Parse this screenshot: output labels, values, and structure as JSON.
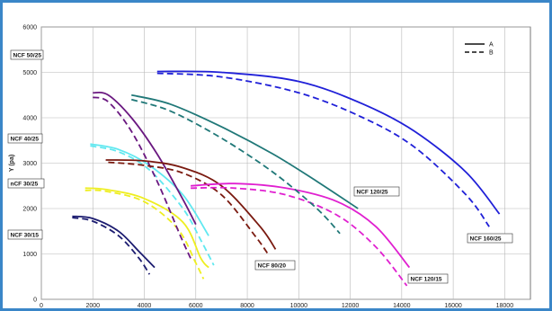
{
  "chart_data": {
    "type": "line",
    "ylabel": "Y (pa)",
    "xlabel": "",
    "xlim": [
      0,
      19000
    ],
    "ylim": [
      0,
      6000
    ],
    "x_ticks": [
      "0",
      "2000",
      "4000",
      "6000",
      "8000",
      "10000",
      "12000",
      "14000",
      "16000",
      "18000"
    ],
    "y_ticks": [
      "0",
      "1000",
      "2000",
      "3000",
      "4000",
      "5000",
      "6000"
    ],
    "grid": true,
    "legend": {
      "position": "top-right",
      "entries": [
        {
          "label": "A",
          "style": "solid"
        },
        {
          "label": "B",
          "style": "dashed"
        }
      ]
    },
    "series": [
      {
        "name": "NCF 30/15",
        "color": "#1c1c70",
        "A": [
          [
            1200,
            1830
          ],
          [
            2000,
            1780
          ],
          [
            3000,
            1500
          ],
          [
            3800,
            1050
          ],
          [
            4400,
            700
          ]
        ],
        "B": [
          [
            1200,
            1800
          ],
          [
            2000,
            1720
          ],
          [
            3000,
            1400
          ],
          [
            3800,
            900
          ],
          [
            4200,
            550
          ]
        ]
      },
      {
        "name": "NCF 30/25",
        "color": "#eeee20",
        "A": [
          [
            1700,
            2450
          ],
          [
            2500,
            2420
          ],
          [
            4000,
            2220
          ],
          [
            5500,
            1700
          ],
          [
            6200,
            900
          ],
          [
            6500,
            700
          ]
        ],
        "B": [
          [
            1700,
            2400
          ],
          [
            2500,
            2380
          ],
          [
            4000,
            2150
          ],
          [
            5300,
            1550
          ],
          [
            6000,
            800
          ],
          [
            6300,
            450
          ]
        ]
      },
      {
        "name": "NCF 40/25",
        "color": "#60e8f0",
        "A": [
          [
            1900,
            3420
          ],
          [
            3000,
            3300
          ],
          [
            4200,
            2950
          ],
          [
            5500,
            2300
          ],
          [
            6500,
            1400
          ]
        ],
        "B": [
          [
            1900,
            3380
          ],
          [
            3000,
            3250
          ],
          [
            4200,
            2850
          ],
          [
            5500,
            2000
          ],
          [
            6200,
            1300
          ],
          [
            6700,
            750
          ]
        ]
      },
      {
        "name": "NCF 50/25",
        "color": "#6a1880",
        "A": [
          [
            2000,
            4550
          ],
          [
            2600,
            4500
          ],
          [
            3500,
            4000
          ],
          [
            4500,
            3200
          ],
          [
            5500,
            2200
          ],
          [
            6000,
            1650
          ]
        ],
        "B": [
          [
            2000,
            4450
          ],
          [
            2600,
            4350
          ],
          [
            3500,
            3700
          ],
          [
            4500,
            2600
          ],
          [
            5400,
            1400
          ],
          [
            5800,
            900
          ]
        ]
      },
      {
        "name": "NCF 80/20",
        "color": "#7a1a10",
        "A": [
          [
            2500,
            3070
          ],
          [
            4000,
            3050
          ],
          [
            5500,
            2900
          ],
          [
            7000,
            2500
          ],
          [
            8500,
            1600
          ],
          [
            9100,
            1100
          ]
        ],
        "B": [
          [
            2600,
            3020
          ],
          [
            4000,
            2950
          ],
          [
            5500,
            2780
          ],
          [
            7000,
            2300
          ],
          [
            8300,
            1400
          ],
          [
            8800,
            1000
          ]
        ]
      },
      {
        "name": "NCF 120/15",
        "color": "#e020d0",
        "A": [
          [
            5800,
            2500
          ],
          [
            7500,
            2550
          ],
          [
            9500,
            2450
          ],
          [
            11500,
            2150
          ],
          [
            13000,
            1600
          ],
          [
            14300,
            700
          ]
        ],
        "B": [
          [
            5800,
            2450
          ],
          [
            7500,
            2450
          ],
          [
            9500,
            2300
          ],
          [
            11500,
            1850
          ],
          [
            13000,
            1150
          ],
          [
            14200,
            300
          ]
        ]
      },
      {
        "name": "NCF 120/25",
        "color": "#207878",
        "A": [
          [
            3500,
            4500
          ],
          [
            5000,
            4300
          ],
          [
            7000,
            3800
          ],
          [
            9000,
            3200
          ],
          [
            10700,
            2600
          ],
          [
            12300,
            2000
          ]
        ],
        "B": [
          [
            3500,
            4400
          ],
          [
            5000,
            4150
          ],
          [
            7000,
            3550
          ],
          [
            9000,
            2800
          ],
          [
            10700,
            2000
          ],
          [
            11600,
            1450
          ]
        ]
      },
      {
        "name": "NCF 160/25",
        "color": "#2020d8",
        "A": [
          [
            4500,
            5020
          ],
          [
            7000,
            5000
          ],
          [
            10000,
            4800
          ],
          [
            12500,
            4300
          ],
          [
            14500,
            3700
          ],
          [
            16500,
            2800
          ],
          [
            17800,
            1880
          ]
        ],
        "B": [
          [
            4500,
            4980
          ],
          [
            7000,
            4900
          ],
          [
            10000,
            4550
          ],
          [
            12500,
            4000
          ],
          [
            14500,
            3350
          ],
          [
            16500,
            2300
          ],
          [
            17400,
            1600
          ]
        ]
      }
    ],
    "annotations": [
      "NCF 50/25",
      "NCF 40/25",
      "nCF 30/25",
      "NCF 30/15",
      "NCF 80/20",
      "NCF 120/15",
      "NCF 120/25",
      "NCF 160/25"
    ]
  }
}
